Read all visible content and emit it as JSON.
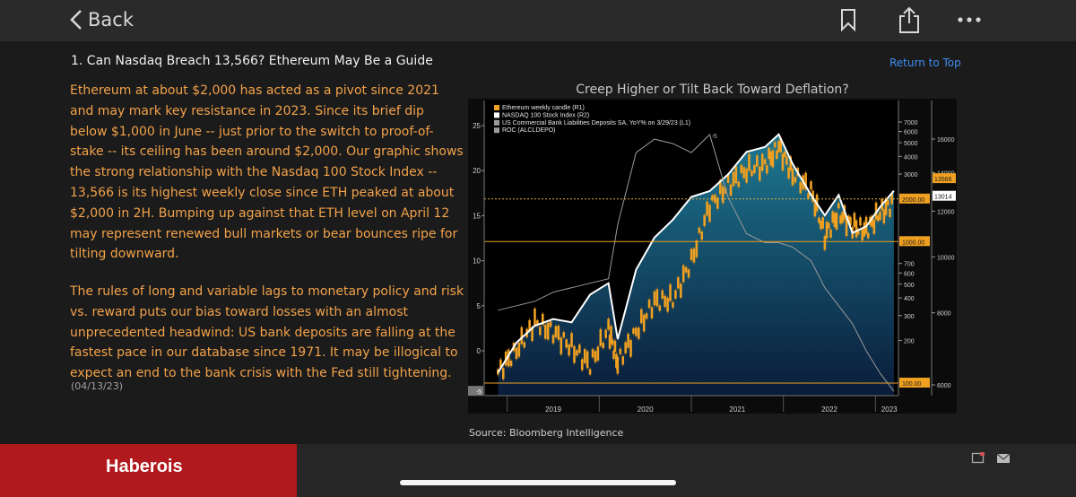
{
  "nav": {
    "back_label": "Back",
    "icons": [
      "bookmark-icon",
      "share-icon",
      "more-icon"
    ]
  },
  "article": {
    "title": "1. Can Nasdaq Breach 13,566? Ethereum May Be a Guide",
    "return_to_top": "Return to Top",
    "paragraph1": "Ethereum at about $2,000 has acted as a pivot since 2021 and may mark key resistance in 2023. Since its brief dip below $1,000 in June -- just prior to the switch to proof-of-stake -- its ceiling has been around $2,000. Our graphic shows the strong relationship with the Nasdaq 100 Stock Index -- 13,566 is its highest weekly close since ETH peaked at about $2,000 in 2H. Bumping up against that ETH level on April 12 may represent renewed bull markets or bear bounces ripe for tilting downward.",
    "paragraph2": "The rules of long and variable lags to monetary policy and risk vs. reward puts our bias toward losses with an almost unprecedented headwind: US bank deposits are falling at the fastest pace in our database since 1971. It may be illogical to expect an end to the bank crisis with the Fed still tightening.",
    "date": "(04/13/23)",
    "source": "Source: Bloomberg Intelligence"
  },
  "colors": {
    "accent": "#f2a24a",
    "link": "#3d8ef0",
    "brand": "#b0191d"
  },
  "chart_data": {
    "type": "line",
    "title": "Creep Higher or Tilt Back Toward Deflation?",
    "legend": [
      {
        "name": "Ethereum weekly candle (R1)",
        "color": "#f0a020"
      },
      {
        "name": "NASDAQ 100 Stock Index (R2)",
        "color": "#ffffff"
      },
      {
        "name": "US Commercial Bank Liabilities Deposits SA, YoY% on 3/29/23 (L1)",
        "color": "#9a9a9a"
      },
      {
        "name": "ROC (ALCLDEPO)",
        "color": "#9a9a9a"
      }
    ],
    "legend_position": "top-left",
    "x_ticks": [
      "2019",
      "2020",
      "2021",
      "2022",
      "2023"
    ],
    "left_axis": {
      "ticks": [
        25,
        20,
        15,
        10,
        5,
        0
      ],
      "bottom_tag": "-5"
    },
    "eth_axis": {
      "ticks": [
        7000,
        6000,
        5000,
        4000,
        3000,
        700,
        600,
        500,
        400,
        300,
        200
      ]
    },
    "nasdaq_axis": {
      "ticks": [
        16000,
        14000,
        12000,
        10000,
        8000,
        6000
      ]
    },
    "ref_labels": {
      "eth_2000": "2000.00",
      "eth_1000": "1000.00",
      "eth_100": "100.00",
      "nasdaq_high": "13566",
      "nasdaq_last": "13014"
    },
    "deposit_annotation": "-5",
    "x": [
      2018.9,
      2019.1,
      2019.3,
      2019.5,
      2019.7,
      2019.9,
      2020.1,
      2020.2,
      2020.4,
      2020.6,
      2020.8,
      2021.0,
      2021.2,
      2021.4,
      2021.6,
      2021.8,
      2021.95,
      2022.1,
      2022.3,
      2022.45,
      2022.6,
      2022.75,
      2022.9,
      2023.05,
      2023.2
    ],
    "series": [
      {
        "name": "NASDAQ 100 Stock Index (R2)",
        "values": [
          6300,
          7100,
          7600,
          7800,
          7700,
          8600,
          9000,
          7200,
          9500,
          10800,
          11600,
          12700,
          13000,
          13900,
          15200,
          15500,
          16300,
          14500,
          12800,
          11800,
          12800,
          11000,
          11300,
          12200,
          13014
        ]
      },
      {
        "name": "Ethereum weekly candle (R1)",
        "values": [
          120,
          170,
          270,
          230,
          180,
          135,
          240,
          140,
          230,
          380,
          390,
          730,
          1800,
          2500,
          3200,
          3500,
          4700,
          3000,
          2300,
          1100,
          1600,
          1300,
          1200,
          1600,
          1900
        ]
      },
      {
        "name": "US Commercial Bank Liabilities Deposits SA, YoY% on 3/29/23 (L1)",
        "values": [
          4.5,
          5,
          5.5,
          6.5,
          7,
          7.5,
          8,
          14,
          22,
          23.5,
          23,
          22,
          24,
          17,
          13,
          12,
          12,
          11.5,
          10,
          7,
          5,
          3,
          0,
          -2.5,
          -4.5
        ]
      }
    ]
  }
}
